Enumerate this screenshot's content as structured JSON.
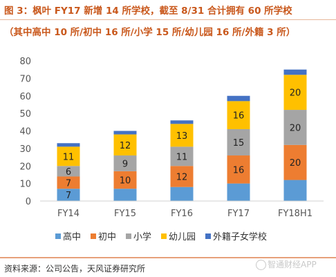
{
  "title": {
    "line1": "图 3：枫叶 FY17 新增 14 所学校，截至 8/31 合计拥有 60 所学校",
    "line2": "（其中高中 10 所/初中 16 所/小学 15 所/幼儿园 16 所/外籍 3 所）"
  },
  "source": "资料来源：公司公告，天风证券研究所",
  "watermark": "智通财经APP",
  "chart_data": {
    "type": "bar",
    "stacked": true,
    "categories": [
      "FY14",
      "FY15",
      "FY16",
      "FY17",
      "FY18H1"
    ],
    "series": [
      {
        "name": "高中",
        "color": "#5b9bd5",
        "values": [
          7,
          7,
          8,
          10,
          12
        ],
        "labels": [
          "7",
          "",
          "",
          "",
          ""
        ]
      },
      {
        "name": "初中",
        "color": "#ed7d31",
        "values": [
          7,
          10,
          12,
          16,
          20
        ],
        "labels": [
          "7",
          "10",
          "12",
          "16",
          "20"
        ]
      },
      {
        "name": "小学",
        "color": "#a5a5a5",
        "values": [
          6,
          9,
          11,
          15,
          20
        ],
        "labels": [
          "6",
          "9",
          "11",
          "15",
          "20"
        ]
      },
      {
        "name": "幼儿园",
        "color": "#ffc000",
        "values": [
          11,
          12,
          13,
          16,
          20
        ],
        "labels": [
          "11",
          "12",
          "13",
          "16",
          "20"
        ]
      },
      {
        "name": "外籍子女学校",
        "color": "#4472c4",
        "values": [
          2,
          2,
          2,
          3,
          3
        ],
        "labels": [
          "",
          "",
          "",
          "",
          ""
        ]
      }
    ],
    "ylim": [
      0,
      80
    ],
    "yticks": [
      "0",
      "10",
      "20",
      "30",
      "40",
      "50",
      "60",
      "70",
      "80"
    ],
    "grid": false,
    "legend_position": "bottom"
  }
}
